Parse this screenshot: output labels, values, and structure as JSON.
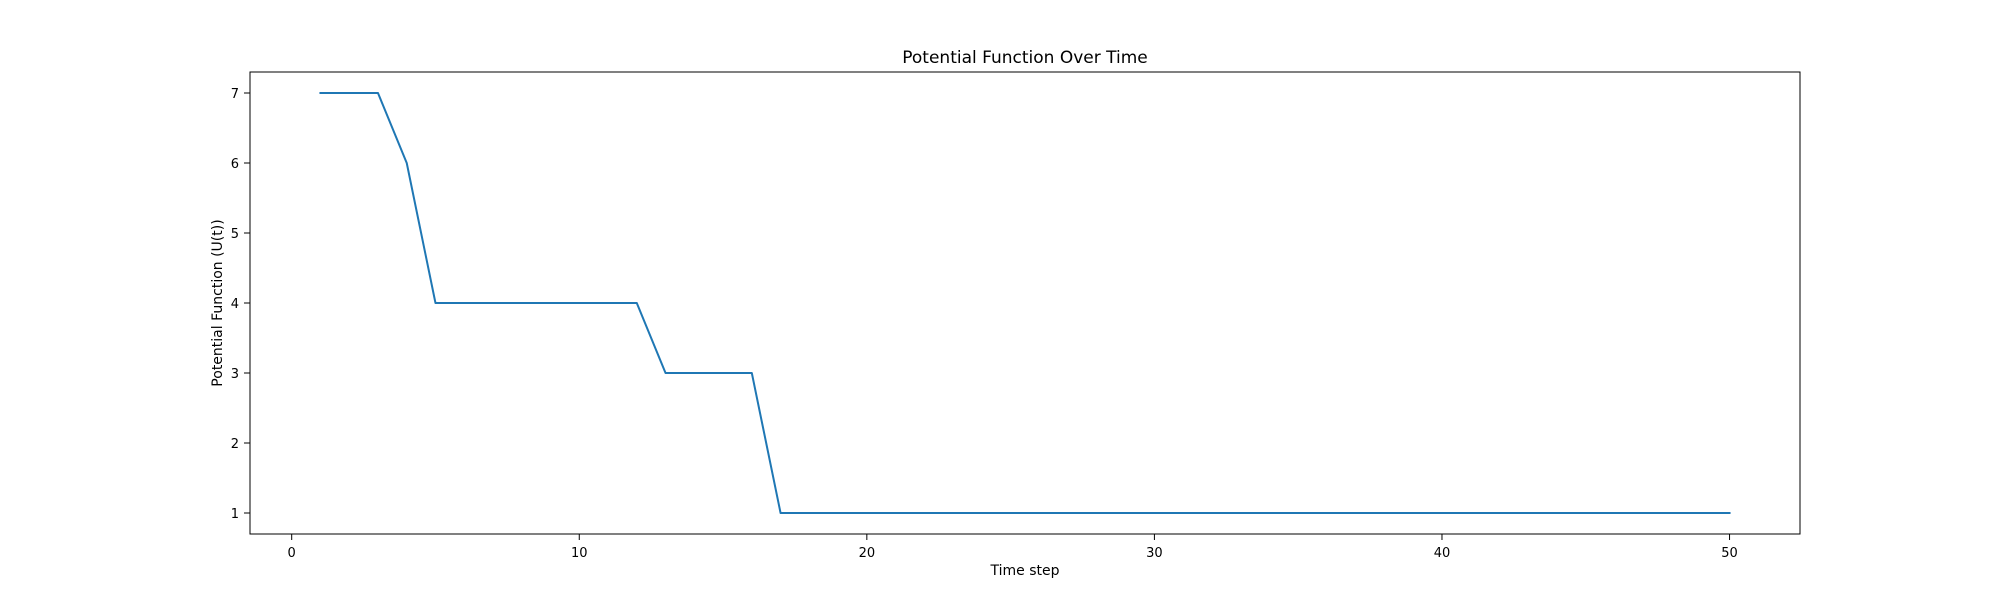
{
  "chart_data": {
    "type": "line",
    "title": "Potential Function Over Time",
    "xlabel": "Time step",
    "ylabel": "Potential Function (U(t))",
    "xlim": [
      -1.45,
      52.45
    ],
    "ylim": [
      0.7,
      7.3
    ],
    "xticks": [
      0,
      10,
      20,
      30,
      40,
      50
    ],
    "yticks": [
      1,
      2,
      3,
      4,
      5,
      6,
      7
    ],
    "grid": false,
    "series": [
      {
        "color": "#1f77b4",
        "x": [
          1,
          2,
          3,
          4,
          5,
          6,
          7,
          8,
          9,
          10,
          11,
          12,
          13,
          14,
          15,
          16,
          17,
          18,
          19,
          20,
          21,
          22,
          23,
          24,
          25,
          26,
          27,
          28,
          29,
          30,
          31,
          32,
          33,
          34,
          35,
          36,
          37,
          38,
          39,
          40,
          41,
          42,
          43,
          44,
          45,
          46,
          47,
          48,
          49,
          50
        ],
        "y": [
          7,
          7,
          7,
          6,
          4,
          4,
          4,
          4,
          4,
          4,
          4,
          4,
          3,
          3,
          3,
          3,
          1,
          1,
          1,
          1,
          1,
          1,
          1,
          1,
          1,
          1,
          1,
          1,
          1,
          1,
          1,
          1,
          1,
          1,
          1,
          1,
          1,
          1,
          1,
          1,
          1,
          1,
          1,
          1,
          1,
          1,
          1,
          1,
          1,
          1
        ]
      }
    ]
  }
}
